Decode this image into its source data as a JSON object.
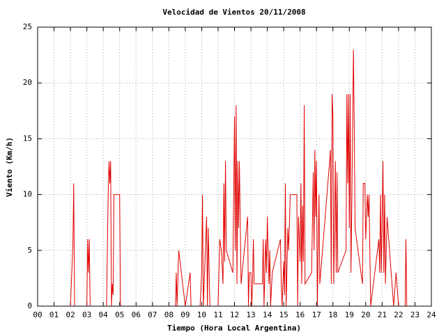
{
  "chart_data": {
    "type": "line",
    "title": "Velocidad de Vientos 20/11/2008",
    "x_label": "Tiempo (Hora Local Argentina)",
    "y_label": "Viento (Km/h)",
    "xlim": [
      0,
      24
    ],
    "ylim": [
      0,
      25
    ],
    "xticks": [
      {
        "value": 0,
        "label": "00"
      },
      {
        "value": 1,
        "label": "01"
      },
      {
        "value": 2,
        "label": "02"
      },
      {
        "value": 3,
        "label": "03"
      },
      {
        "value": 4,
        "label": "04"
      },
      {
        "value": 5,
        "label": "05"
      },
      {
        "value": 6,
        "label": "06"
      },
      {
        "value": 7,
        "label": "07"
      },
      {
        "value": 8,
        "label": "08"
      },
      {
        "value": 9,
        "label": "09"
      },
      10,
      11,
      12,
      13,
      14,
      15,
      16,
      17,
      18,
      19,
      20,
      21,
      22,
      23,
      24
    ],
    "yticks": [
      0,
      5,
      10,
      15,
      20,
      25
    ],
    "grid": true,
    "series": [
      {
        "color": "#e00000",
        "x": [
          0,
          2.0,
          2.15,
          2.2,
          2.25,
          3.0,
          3.05,
          3.1,
          3.15,
          3.2,
          4.2,
          4.3,
          4.35,
          4.4,
          4.45,
          4.5,
          4.55,
          4.6,
          4.65,
          5.0,
          5.05,
          8.4,
          8.45,
          8.5,
          8.6,
          9.0,
          9.3,
          9.35,
          9.9,
          10.0,
          10.05,
          10.1,
          10.3,
          10.35,
          10.4,
          10.5,
          11.0,
          11.1,
          11.2,
          11.3,
          11.35,
          11.4,
          11.45,
          11.5,
          11.9,
          12.0,
          12.05,
          12.1,
          12.15,
          12.2,
          12.25,
          12.3,
          12.4,
          12.8,
          12.85,
          12.9,
          13.0,
          13.05,
          13.1,
          13.15,
          13.2,
          13.7,
          13.75,
          13.8,
          13.9,
          13.95,
          14.0,
          14.1,
          14.15,
          14.2,
          14.3,
          14.8,
          14.85,
          14.9,
          15.0,
          15.05,
          15.1,
          15.15,
          15.25,
          15.3,
          15.4,
          15.8,
          15.85,
          15.9,
          16.0,
          16.05,
          16.1,
          16.15,
          16.2,
          16.25,
          16.3,
          16.7,
          16.8,
          16.85,
          16.9,
          16.95,
          17.0,
          17.05,
          17.1,
          17.15,
          17.2,
          17.8,
          17.85,
          17.9,
          17.95,
          18.0,
          18.05,
          18.15,
          18.2,
          18.25,
          18.3,
          18.8,
          18.85,
          18.9,
          18.95,
          19.0,
          19.05,
          19.1,
          19.15,
          19.25,
          19.3,
          19.35,
          19.8,
          19.85,
          19.95,
          20.0,
          20.1,
          20.15,
          20.2,
          20.3,
          20.8,
          20.85,
          20.9,
          20.95,
          21.05,
          21.1,
          21.15,
          21.2,
          21.3,
          21.35,
          21.7,
          21.8,
          21.85,
          22.0,
          22.4,
          22.45,
          22.5,
          22.6
        ],
        "values": [
          0,
          0,
          5.5,
          11,
          0,
          0,
          6,
          3,
          6,
          0,
          0,
          10,
          13,
          11,
          13,
          0,
          2,
          1,
          10,
          10,
          0,
          0,
          3,
          0,
          5,
          0,
          3,
          0,
          0,
          3,
          10,
          0,
          8,
          0,
          7,
          0,
          0,
          6,
          5,
          2,
          11,
          4,
          13,
          5,
          3,
          17,
          5,
          18,
          2,
          13,
          7,
          13,
          2,
          8,
          0,
          3,
          3,
          0,
          2,
          6,
          2,
          2,
          6,
          0,
          6,
          3,
          8,
          2,
          5,
          0,
          3,
          6,
          2,
          0,
          4,
          1,
          11,
          0,
          7,
          5,
          10,
          10,
          0,
          8,
          4,
          11,
          2,
          9,
          4,
          18,
          2,
          3,
          12,
          5,
          14,
          8,
          13,
          0,
          5,
          10,
          2,
          13,
          14,
          2,
          19,
          17,
          2,
          13,
          3,
          12,
          3,
          5,
          19,
          11,
          19,
          7,
          19,
          3,
          9,
          23,
          16,
          7,
          2,
          11,
          11,
          6,
          10,
          8,
          10,
          0,
          6,
          3,
          10,
          3,
          13,
          3,
          10,
          2,
          8,
          7,
          0,
          2,
          3,
          0,
          0,
          6,
          0,
          0
        ]
      }
    ]
  }
}
